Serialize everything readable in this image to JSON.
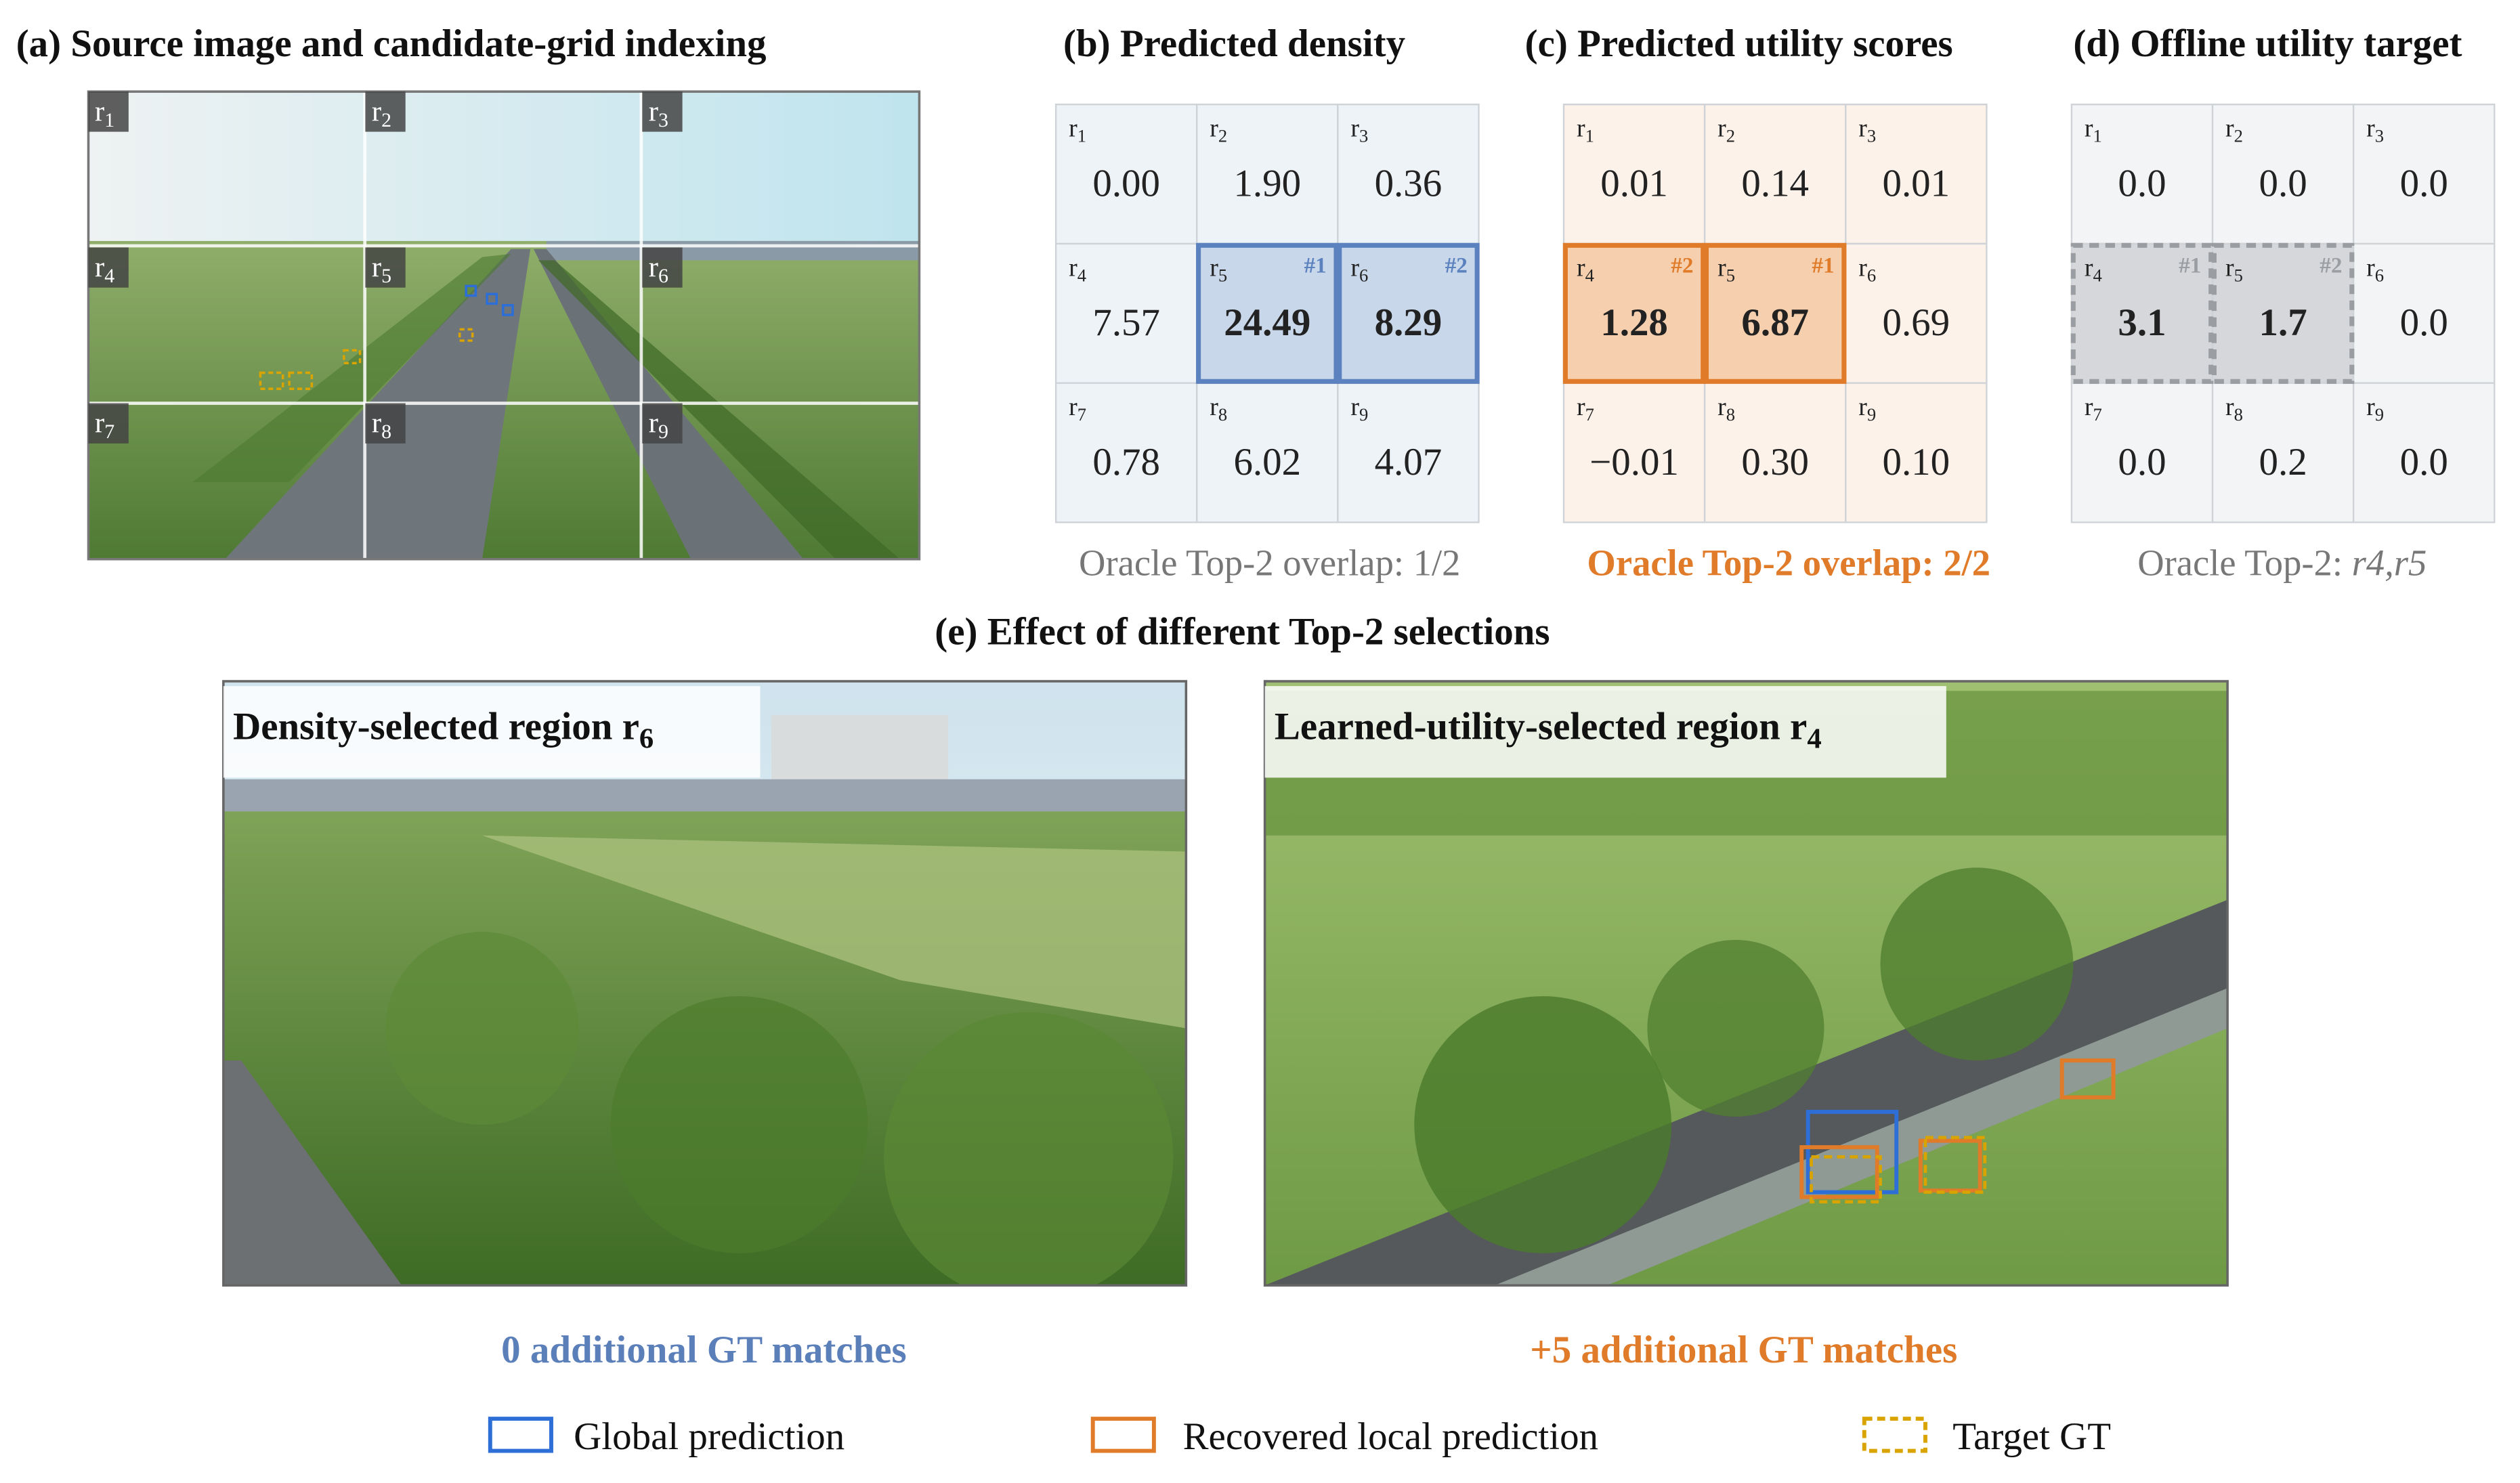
{
  "panel_a": {
    "title": "(a) Source image and candidate-grid indexing",
    "regions": [
      "r1",
      "r2",
      "r3",
      "r4",
      "r5",
      "r6",
      "r7",
      "r8",
      "r9"
    ]
  },
  "panel_b": {
    "title": "(b) Predicted density",
    "caption": "Oracle Top-2 overlap: 1/2",
    "cells": [
      {
        "label": "r1",
        "value": "0.00"
      },
      {
        "label": "r2",
        "value": "1.90"
      },
      {
        "label": "r3",
        "value": "0.36"
      },
      {
        "label": "r4",
        "value": "7.57"
      },
      {
        "label": "r5",
        "value": "24.49",
        "rank": "#1"
      },
      {
        "label": "r6",
        "value": "8.29",
        "rank": "#2"
      },
      {
        "label": "r7",
        "value": "0.78"
      },
      {
        "label": "r8",
        "value": "6.02"
      },
      {
        "label": "r9",
        "value": "4.07"
      }
    ]
  },
  "panel_c": {
    "title": "(c) Predicted utility scores",
    "caption": "Oracle Top-2 overlap: 2/2",
    "cells": [
      {
        "label": "r1",
        "value": "0.01"
      },
      {
        "label": "r2",
        "value": "0.14"
      },
      {
        "label": "r3",
        "value": "0.01"
      },
      {
        "label": "r4",
        "value": "1.28",
        "rank": "#2"
      },
      {
        "label": "r5",
        "value": "6.87",
        "rank": "#1"
      },
      {
        "label": "r6",
        "value": "0.69"
      },
      {
        "label": "r7",
        "value": "−0.01"
      },
      {
        "label": "r8",
        "value": "0.30"
      },
      {
        "label": "r9",
        "value": "0.10"
      }
    ]
  },
  "panel_d": {
    "title": "(d) Offline utility target",
    "caption": "Oracle Top-2: ",
    "caption_regions": "r4,r5",
    "cells": [
      {
        "label": "r1",
        "value": "0.0"
      },
      {
        "label": "r2",
        "value": "0.0"
      },
      {
        "label": "r3",
        "value": "0.0"
      },
      {
        "label": "r4",
        "value": "3.1",
        "rank": "#1"
      },
      {
        "label": "r5",
        "value": "1.7",
        "rank": "#2"
      },
      {
        "label": "r6",
        "value": "0.0"
      },
      {
        "label": "r7",
        "value": "0.0"
      },
      {
        "label": "r8",
        "value": "0.2"
      },
      {
        "label": "r9",
        "value": "0.0"
      }
    ]
  },
  "panel_e": {
    "title": "(e) Effect of different Top-2 selections",
    "left_label": "Density-selected region r6",
    "left_caption": "0 additional GT matches",
    "right_label": "Learned-utility-selected region r4",
    "right_caption": "+5 additional GT matches"
  },
  "legend": [
    "Global prediction",
    "Recovered local prediction",
    "Target GT"
  ]
}
